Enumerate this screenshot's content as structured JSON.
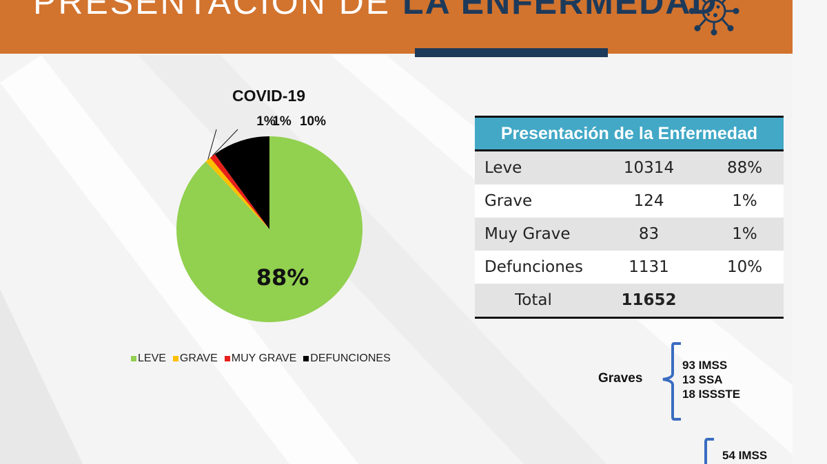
{
  "header": {
    "title_light": "PRESENTACIÓN DE ",
    "title_bold": "LA ENFERMEDAD",
    "accent": "#d2732e",
    "navy": "#1d3a5a"
  },
  "chart_data": {
    "type": "pie",
    "title": "COVID-19",
    "categories": [
      "LEVE",
      "GRAVE",
      "MUY GRAVE",
      "DEFUNCIONES"
    ],
    "values": [
      88,
      1,
      1,
      10
    ],
    "data_labels": [
      "88%",
      "1%",
      "1%",
      "10%"
    ],
    "colors": [
      "#92d050",
      "#ffc000",
      "#e8201b",
      "#000000"
    ],
    "legend_position": "bottom"
  },
  "table": {
    "header": "Presentación de la Enfermedad",
    "rows": [
      {
        "label": "Leve",
        "count": "10314",
        "pct": "88%"
      },
      {
        "label": "Grave",
        "count": "124",
        "pct": "1%"
      },
      {
        "label": "Muy Grave",
        "count": "83",
        "pct": "1%"
      },
      {
        "label": "Defunciones",
        "count": "1131",
        "pct": "10%"
      }
    ],
    "total_label": "Total",
    "total_value": "11652",
    "header_color": "#42a8c6"
  },
  "graves": {
    "label": "Graves",
    "items": [
      "93 IMSS",
      "13 SSA",
      "18 ISSSTE"
    ]
  },
  "muy_graves": {
    "items": [
      "54 IMSS"
    ]
  }
}
